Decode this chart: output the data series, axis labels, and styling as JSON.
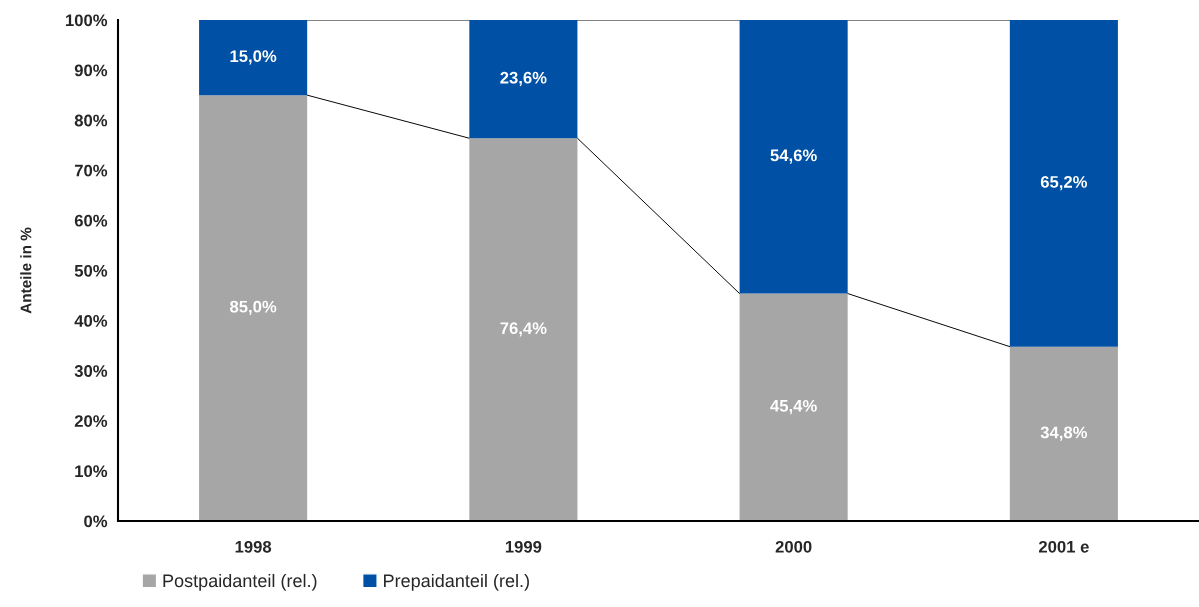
{
  "chart_data": {
    "type": "bar",
    "stacked": true,
    "ylabel": "Anteile in %",
    "categories": [
      "1998",
      "1999",
      "2000",
      "2001 e"
    ],
    "series": [
      {
        "name": "Postpaidanteil (rel.)",
        "color": "#a6a6a6",
        "values": [
          85.0,
          76.4,
          45.4,
          34.8
        ],
        "value_labels": [
          "85,0%",
          "76,4%",
          "45,4%",
          "34,8%"
        ]
      },
      {
        "name": "Prepaidanteil (rel.)",
        "color": "#0051a5",
        "values": [
          15.0,
          23.6,
          54.6,
          65.2
        ],
        "value_labels": [
          "15,0%",
          "23,6%",
          "54,6%",
          "65,2%"
        ]
      }
    ],
    "ylim": [
      0,
      100
    ],
    "yticks": [
      {
        "value": 0,
        "label": "0%"
      },
      {
        "value": 10,
        "label": "10%"
      },
      {
        "value": 20,
        "label": "20%"
      },
      {
        "value": 30,
        "label": "30%"
      },
      {
        "value": 40,
        "label": "40%"
      },
      {
        "value": 50,
        "label": "50%"
      },
      {
        "value": 60,
        "label": "60%"
      },
      {
        "value": 70,
        "label": "70%"
      },
      {
        "value": 80,
        "label": "80%"
      },
      {
        "value": 90,
        "label": "90%"
      },
      {
        "value": 100,
        "label": "100%"
      }
    ],
    "grid": false,
    "legend": "bottom left"
  }
}
